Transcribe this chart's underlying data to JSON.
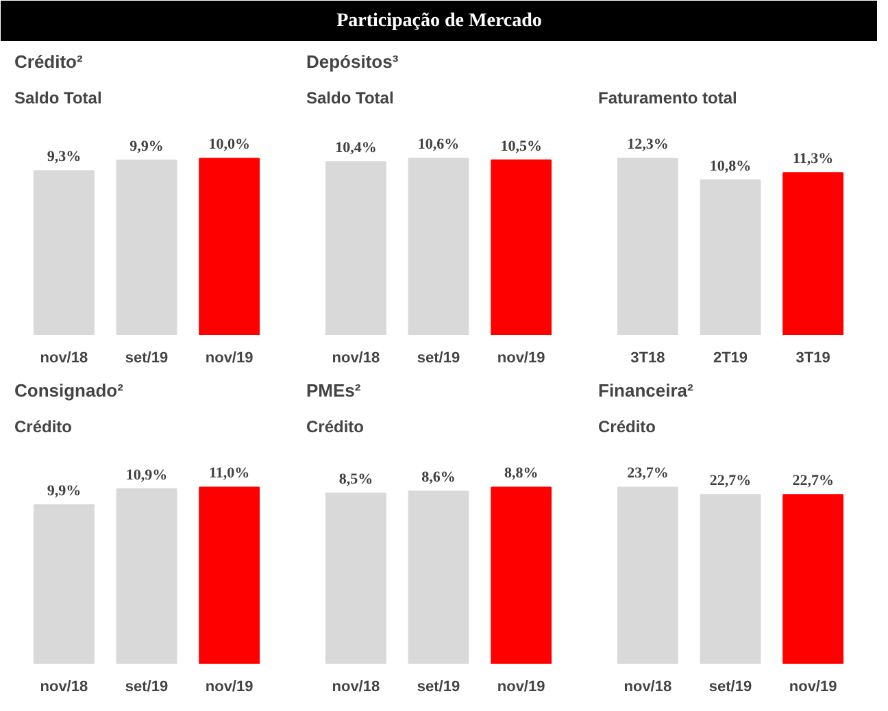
{
  "chart_data": [
    {
      "type": "other",
      "title": "Participação de Mercado"
    },
    {
      "type": "bar",
      "title": "Crédito²",
      "subtitle": "Saldo Total",
      "categories": [
        "nov/18",
        "set/19",
        "nov/19"
      ],
      "values": [
        9.3,
        9.9,
        10.0
      ],
      "value_labels": [
        "9,3%",
        "9,9%",
        "10,0%"
      ],
      "colors": [
        "#d9d9d9",
        "#d9d9d9",
        "#ff0000"
      ]
    },
    {
      "type": "bar",
      "title": "Depósitos³",
      "subtitle": "Saldo Total",
      "categories": [
        "nov/18",
        "set/19",
        "nov/19"
      ],
      "values": [
        10.4,
        10.6,
        10.5
      ],
      "value_labels": [
        "10,4%",
        "10,6%",
        "10,5%"
      ],
      "colors": [
        "#d9d9d9",
        "#d9d9d9",
        "#ff0000"
      ]
    },
    {
      "type": "bar",
      "subtitle": "Faturamento total",
      "categories": [
        "3T18",
        "2T19",
        "3T19"
      ],
      "values": [
        12.3,
        10.8,
        11.3
      ],
      "value_labels": [
        "12,3%",
        "10,8%",
        "11,3%"
      ],
      "colors": [
        "#d9d9d9",
        "#d9d9d9",
        "#ff0000"
      ]
    },
    {
      "type": "bar",
      "title": "Consignado²",
      "subtitle": "Crédito",
      "categories": [
        "nov/18",
        "set/19",
        "nov/19"
      ],
      "values": [
        9.9,
        10.9,
        11.0
      ],
      "value_labels": [
        "9,9%",
        "10,9%",
        "11,0%"
      ],
      "colors": [
        "#d9d9d9",
        "#d9d9d9",
        "#ff0000"
      ]
    },
    {
      "type": "bar",
      "title": "PMEs²",
      "subtitle": "Crédito",
      "categories": [
        "nov/18",
        "set/19",
        "nov/19"
      ],
      "values": [
        8.5,
        8.6,
        8.8
      ],
      "value_labels": [
        "8,5%",
        "8,6%",
        "8,8%"
      ],
      "colors": [
        "#d9d9d9",
        "#d9d9d9",
        "#ff0000"
      ]
    },
    {
      "type": "bar",
      "title": "Financeira²",
      "subtitle": "Crédito",
      "categories": [
        "nov/18",
        "set/19",
        "nov/19"
      ],
      "values": [
        23.7,
        22.7,
        22.7
      ],
      "value_labels": [
        "23,7%",
        "22,7%",
        "22,7%"
      ],
      "colors": [
        "#d9d9d9",
        "#d9d9d9",
        "#ff0000"
      ]
    }
  ]
}
